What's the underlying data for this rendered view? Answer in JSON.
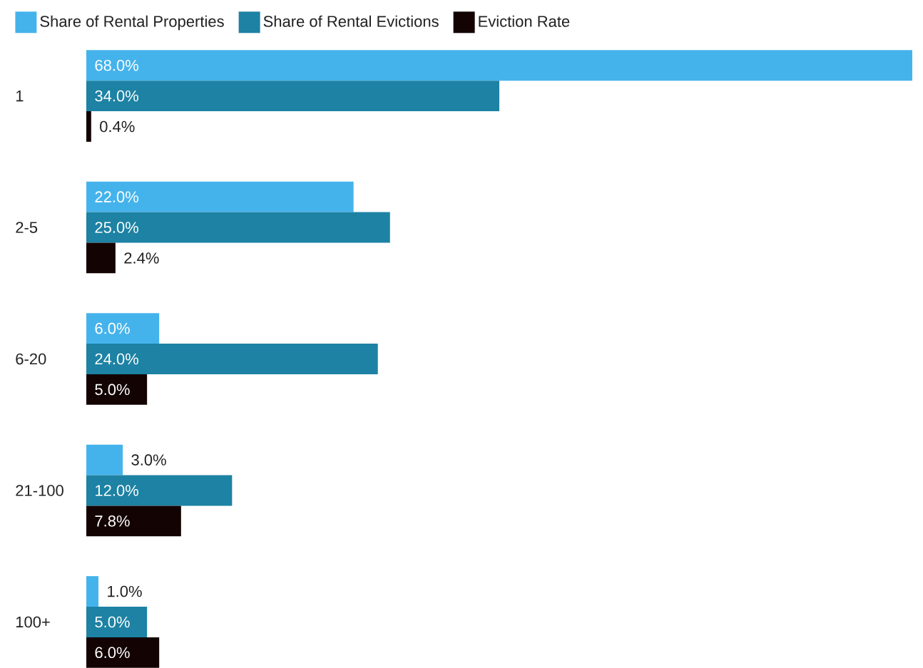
{
  "chart_data": {
    "type": "bar",
    "orientation": "horizontal",
    "legend": "top left",
    "categories": [
      "1",
      "2-5",
      "6-20",
      "21-100",
      "100+"
    ],
    "series": [
      {
        "name": "Share of Rental Properties",
        "color": "#45b3eb",
        "values": [
          68.0,
          22.0,
          6.0,
          3.0,
          1.0
        ],
        "value_labels": [
          "68.0%",
          "22.0%",
          "6.0%",
          "3.0%",
          "1.0%"
        ]
      },
      {
        "name": "Share of Rental Evictions",
        "color": "#1d82a3",
        "values": [
          34.0,
          25.0,
          24.0,
          12.0,
          5.0
        ],
        "value_labels": [
          "34.0%",
          "25.0%",
          "24.0%",
          "12.0%",
          "5.0%"
        ]
      },
      {
        "name": "Eviction Rate",
        "color": "#130303",
        "values": [
          0.4,
          2.4,
          5.0,
          7.8,
          6.0
        ],
        "value_labels": [
          "0.4%",
          "2.4%",
          "5.0%",
          "7.8%",
          "6.0%"
        ]
      }
    ]
  }
}
